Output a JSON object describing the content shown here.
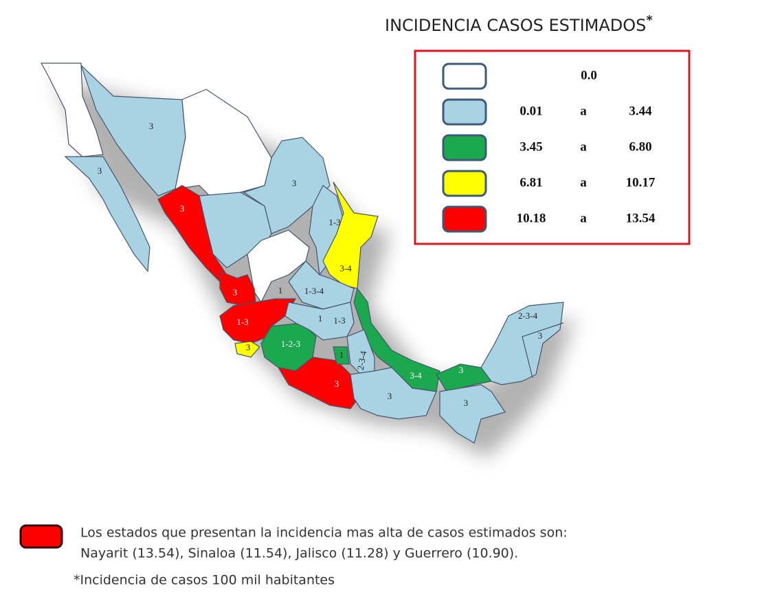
{
  "title": "INCIDENCIA CASOS ESTIMADOS",
  "title_mark": "*",
  "legend": {
    "rows": [
      {
        "color": "#ffffff",
        "value": "0.0"
      },
      {
        "color": "#a9d3e3",
        "from": "0.01",
        "sep": "a",
        "to": "3.44"
      },
      {
        "color": "#1ca84f",
        "from": "3.45",
        "sep": "a",
        "to": "6.80"
      },
      {
        "color": "#ffff00",
        "from": "6.81",
        "sep": "a",
        "to": "10.17"
      },
      {
        "color": "#ff0000",
        "from": "10.18",
        "sep": "a",
        "to": "13.54"
      }
    ]
  },
  "map": {
    "labels": [
      "3",
      "3",
      "3",
      "3",
      "1-3",
      "3-4",
      "3",
      "1",
      "1-3-4",
      "1-3",
      "1",
      "1-3",
      "3",
      "1-2-3",
      "1",
      "2-3-4",
      "3-4",
      "3",
      "3",
      "3",
      "3",
      "2-3-4",
      "3"
    ]
  },
  "note": {
    "line1": "Los estados que presentan la incidencia mas alta de casos estimados son:",
    "line2": "Nayarit (13.54), Sinaloa (11.54), Jalisco (11.28) y Guerrero (10.90)."
  },
  "footnote": "*Incidencia de casos 100 mil habitantes"
}
